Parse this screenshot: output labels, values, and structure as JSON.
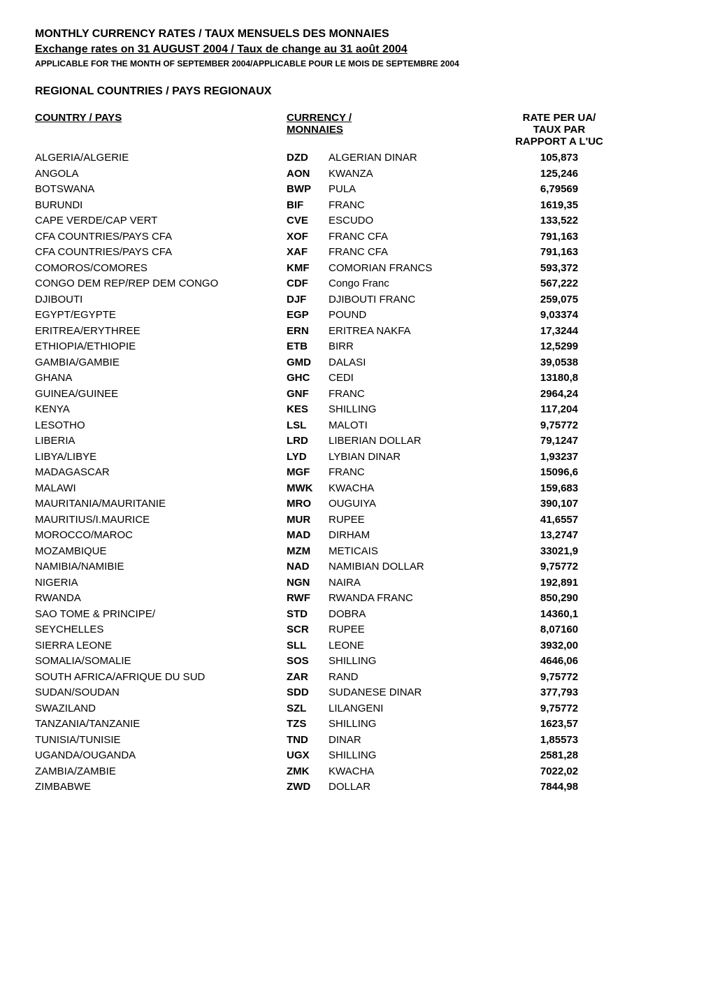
{
  "header": {
    "title": "MONTHLY CURRENCY RATES / TAUX MENSUELS DES MONNAIES",
    "subtitle": "Exchange rates on 31 AUGUST 2004 / Taux de change au 31 août 2004",
    "note": "APPLICABLE FOR THE MONTH OF SEPTEMBER 2004/APPLICABLE POUR LE MOIS DE SEPTEMBRE 2004",
    "section": "REGIONAL COUNTRIES / PAYS REGIONAUX"
  },
  "columns": {
    "country_header": "COUNTRY / PAYS",
    "currency_header": "CURRENCY /",
    "currency_sub": "MONNAIES",
    "rate_line1": "RATE PER UA/",
    "rate_line2": "TAUX PAR",
    "rate_line3": "RAPPORT A L'UC"
  },
  "rows": [
    {
      "country": "ALGERIA/ALGERIE",
      "code": "DZD",
      "currency": "ALGERIAN DINAR",
      "rate": "105,873"
    },
    {
      "country": "ANGOLA",
      "code": "AON",
      "currency": "KWANZA",
      "rate": "125,246"
    },
    {
      "country": "BOTSWANA",
      "code": "BWP",
      "currency": "PULA",
      "rate": "6,79569"
    },
    {
      "country": "BURUNDI",
      "code": "BIF",
      "currency": "FRANC",
      "rate": "1619,35"
    },
    {
      "country": "CAPE VERDE/CAP VERT",
      "code": "CVE",
      "currency": "ESCUDO",
      "rate": "133,522"
    },
    {
      "country": "CFA COUNTRIES/PAYS CFA",
      "code": "XOF",
      "currency": "FRANC CFA",
      "rate": "791,163"
    },
    {
      "country": "CFA COUNTRIES/PAYS CFA",
      "code": "XAF",
      "currency": "FRANC CFA",
      "rate": "791,163"
    },
    {
      "country": "COMOROS/COMORES",
      "code": "KMF",
      "currency": "COMORIAN FRANCS",
      "rate": "593,372"
    },
    {
      "country": "CONGO DEM REP/REP DEM CONGO",
      "code": "CDF",
      "currency": "Congo Franc",
      "rate": "567,222"
    },
    {
      "country": "DJIBOUTI",
      "code": "DJF",
      "currency": "DJIBOUTI FRANC",
      "rate": "259,075"
    },
    {
      "country": "EGYPT/EGYPTE",
      "code": "EGP",
      "currency": "POUND",
      "rate": "9,03374"
    },
    {
      "country": "ERITREA/ERYTHREE",
      "code": "ERN",
      "currency": "ERITREA NAKFA",
      "rate": "17,3244"
    },
    {
      "country": "ETHIOPIA/ETHIOPIE",
      "code": "ETB",
      "currency": "BIRR",
      "rate": "12,5299"
    },
    {
      "country": "GAMBIA/GAMBIE",
      "code": "GMD",
      "currency": "DALASI",
      "rate": "39,0538"
    },
    {
      "country": "GHANA",
      "code": "GHC",
      "currency": "CEDI",
      "rate": "13180,8"
    },
    {
      "country": "GUINEA/GUINEE",
      "code": "GNF",
      "currency": "FRANC",
      "rate": "2964,24"
    },
    {
      "country": "KENYA",
      "code": "KES",
      "currency": "SHILLING",
      "rate": "117,204"
    },
    {
      "country": "LESOTHO",
      "code": "LSL",
      "currency": "MALOTI",
      "rate": "9,75772"
    },
    {
      "country": "LIBERIA",
      "code": "LRD",
      "currency": "LIBERIAN DOLLAR",
      "rate": "79,1247"
    },
    {
      "country": "LIBYA/LIBYE",
      "code": "LYD",
      "currency": "LYBIAN DINAR",
      "rate": "1,93237"
    },
    {
      "country": "MADAGASCAR",
      "code": "MGF",
      "currency": "FRANC",
      "rate": "15096,6"
    },
    {
      "country": "MALAWI",
      "code": "MWK",
      "currency": "KWACHA",
      "rate": "159,683"
    },
    {
      "country": "MAURITANIA/MAURITANIE",
      "code": "MRO",
      "currency": "OUGUIYA",
      "rate": "390,107"
    },
    {
      "country": "MAURITIUS/I.MAURICE",
      "code": "MUR",
      "currency": "RUPEE",
      "rate": "41,6557"
    },
    {
      "country": "MOROCCO/MAROC",
      "code": "MAD",
      "currency": "DIRHAM",
      "rate": "13,2747"
    },
    {
      "country": "MOZAMBIQUE",
      "code": "MZM",
      "currency": "METICAIS",
      "rate": "33021,9"
    },
    {
      "country": "NAMIBIA/NAMIBIE",
      "code": "NAD",
      "currency": "NAMIBIAN DOLLAR",
      "rate": "9,75772"
    },
    {
      "country": "NIGERIA",
      "code": "NGN",
      "currency": "NAIRA",
      "rate": "192,891"
    },
    {
      "country": "RWANDA",
      "code": "RWF",
      "currency": "RWANDA FRANC",
      "rate": "850,290"
    },
    {
      "country": "SAO TOME & PRINCIPE/",
      "code": "STD",
      "currency": "DOBRA",
      "rate": "14360,1"
    },
    {
      "country": "SEYCHELLES",
      "code": "SCR",
      "currency": "RUPEE",
      "rate": "8,07160"
    },
    {
      "country": "SIERRA LEONE",
      "code": "SLL",
      "currency": "LEONE",
      "rate": "3932,00"
    },
    {
      "country": "SOMALIA/SOMALIE",
      "code": "SOS",
      "currency": "SHILLING",
      "rate": "4646,06"
    },
    {
      "country": "SOUTH AFRICA/AFRIQUE DU SUD",
      "code": "ZAR",
      "currency": "RAND",
      "rate": "9,75772"
    },
    {
      "country": "SUDAN/SOUDAN",
      "code": "SDD",
      "currency": "SUDANESE DINAR",
      "rate": "377,793"
    },
    {
      "country": "SWAZILAND",
      "code": "SZL",
      "currency": "LILANGENI",
      "rate": "9,75772"
    },
    {
      "country": "TANZANIA/TANZANIE",
      "code": "TZS",
      "currency": "SHILLING",
      "rate": "1623,57"
    },
    {
      "country": "TUNISIA/TUNISIE",
      "code": "TND",
      "currency": "DINAR",
      "rate": "1,85573"
    },
    {
      "country": "UGANDA/OUGANDA",
      "code": "UGX",
      "currency": "SHILLING",
      "rate": "2581,28"
    },
    {
      "country": "ZAMBIA/ZAMBIE",
      "code": "ZMK",
      "currency": "KWACHA",
      "rate": "7022,02"
    },
    {
      "country": "ZIMBABWE",
      "code": "ZWD",
      "currency": "DOLLAR",
      "rate": "7844,98"
    }
  ],
  "styling": {
    "background_color": "#ffffff",
    "text_color": "#000000",
    "font_family": "Arial, Helvetica, sans-serif",
    "title_fontsize": 16,
    "note_fontsize": 12,
    "body_fontsize": 15,
    "line_height": 1.5,
    "col_widths": {
      "country": 360,
      "code": 60,
      "currency": 240,
      "rate": 180
    }
  }
}
